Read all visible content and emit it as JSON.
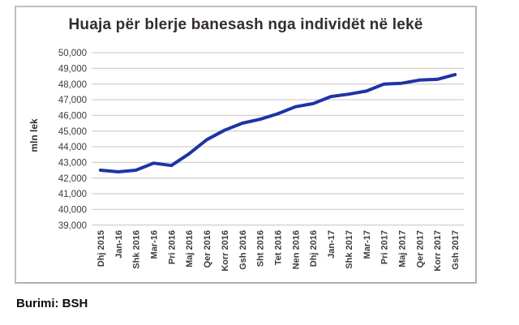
{
  "page": {
    "source_note": "Burimi: BSH"
  },
  "chart_data": {
    "type": "line",
    "title": "Huaja për blerje banesash nga individët në lekë",
    "xlabel": "",
    "ylabel": "mln lek",
    "categories": [
      "Dhj 2015",
      "Jan-16",
      "Shk 2016",
      "Mar-16",
      "Pri 2016",
      "Maj 2016",
      "Qer 2016",
      "Korr 2016",
      "Gsh 2016",
      "Sht 2016",
      "Tet 2016",
      "Nen 2016",
      "Dhj 2016",
      "Jan-17",
      "Shk 2017",
      "Mar-17",
      "Pri 2017",
      "Maj 2017",
      "Qer 2017",
      "Korr 2017",
      "Gsh 2017"
    ],
    "series": [
      {
        "name": "Huaja për blerje banesash nga individët në lekë",
        "values": [
          42500,
          42400,
          42500,
          42950,
          42800,
          43550,
          44450,
          45050,
          45500,
          45750,
          46100,
          46550,
          46750,
          47200,
          47350,
          47550,
          48000,
          48050,
          48250,
          48300,
          48600
        ]
      }
    ],
    "ylim": [
      39000,
      50000
    ],
    "ytick_step": 1000,
    "yticks": [
      "39,000",
      "40,000",
      "41,000",
      "42,000",
      "43,000",
      "44,000",
      "45,000",
      "46,000",
      "47,000",
      "48,000",
      "49,000",
      "50,000"
    ],
    "grid": true,
    "legend_position": "none",
    "line_color": "#1d33a7",
    "gridline_color": "#d5d2cf",
    "tick_label_color": "#413b38"
  }
}
